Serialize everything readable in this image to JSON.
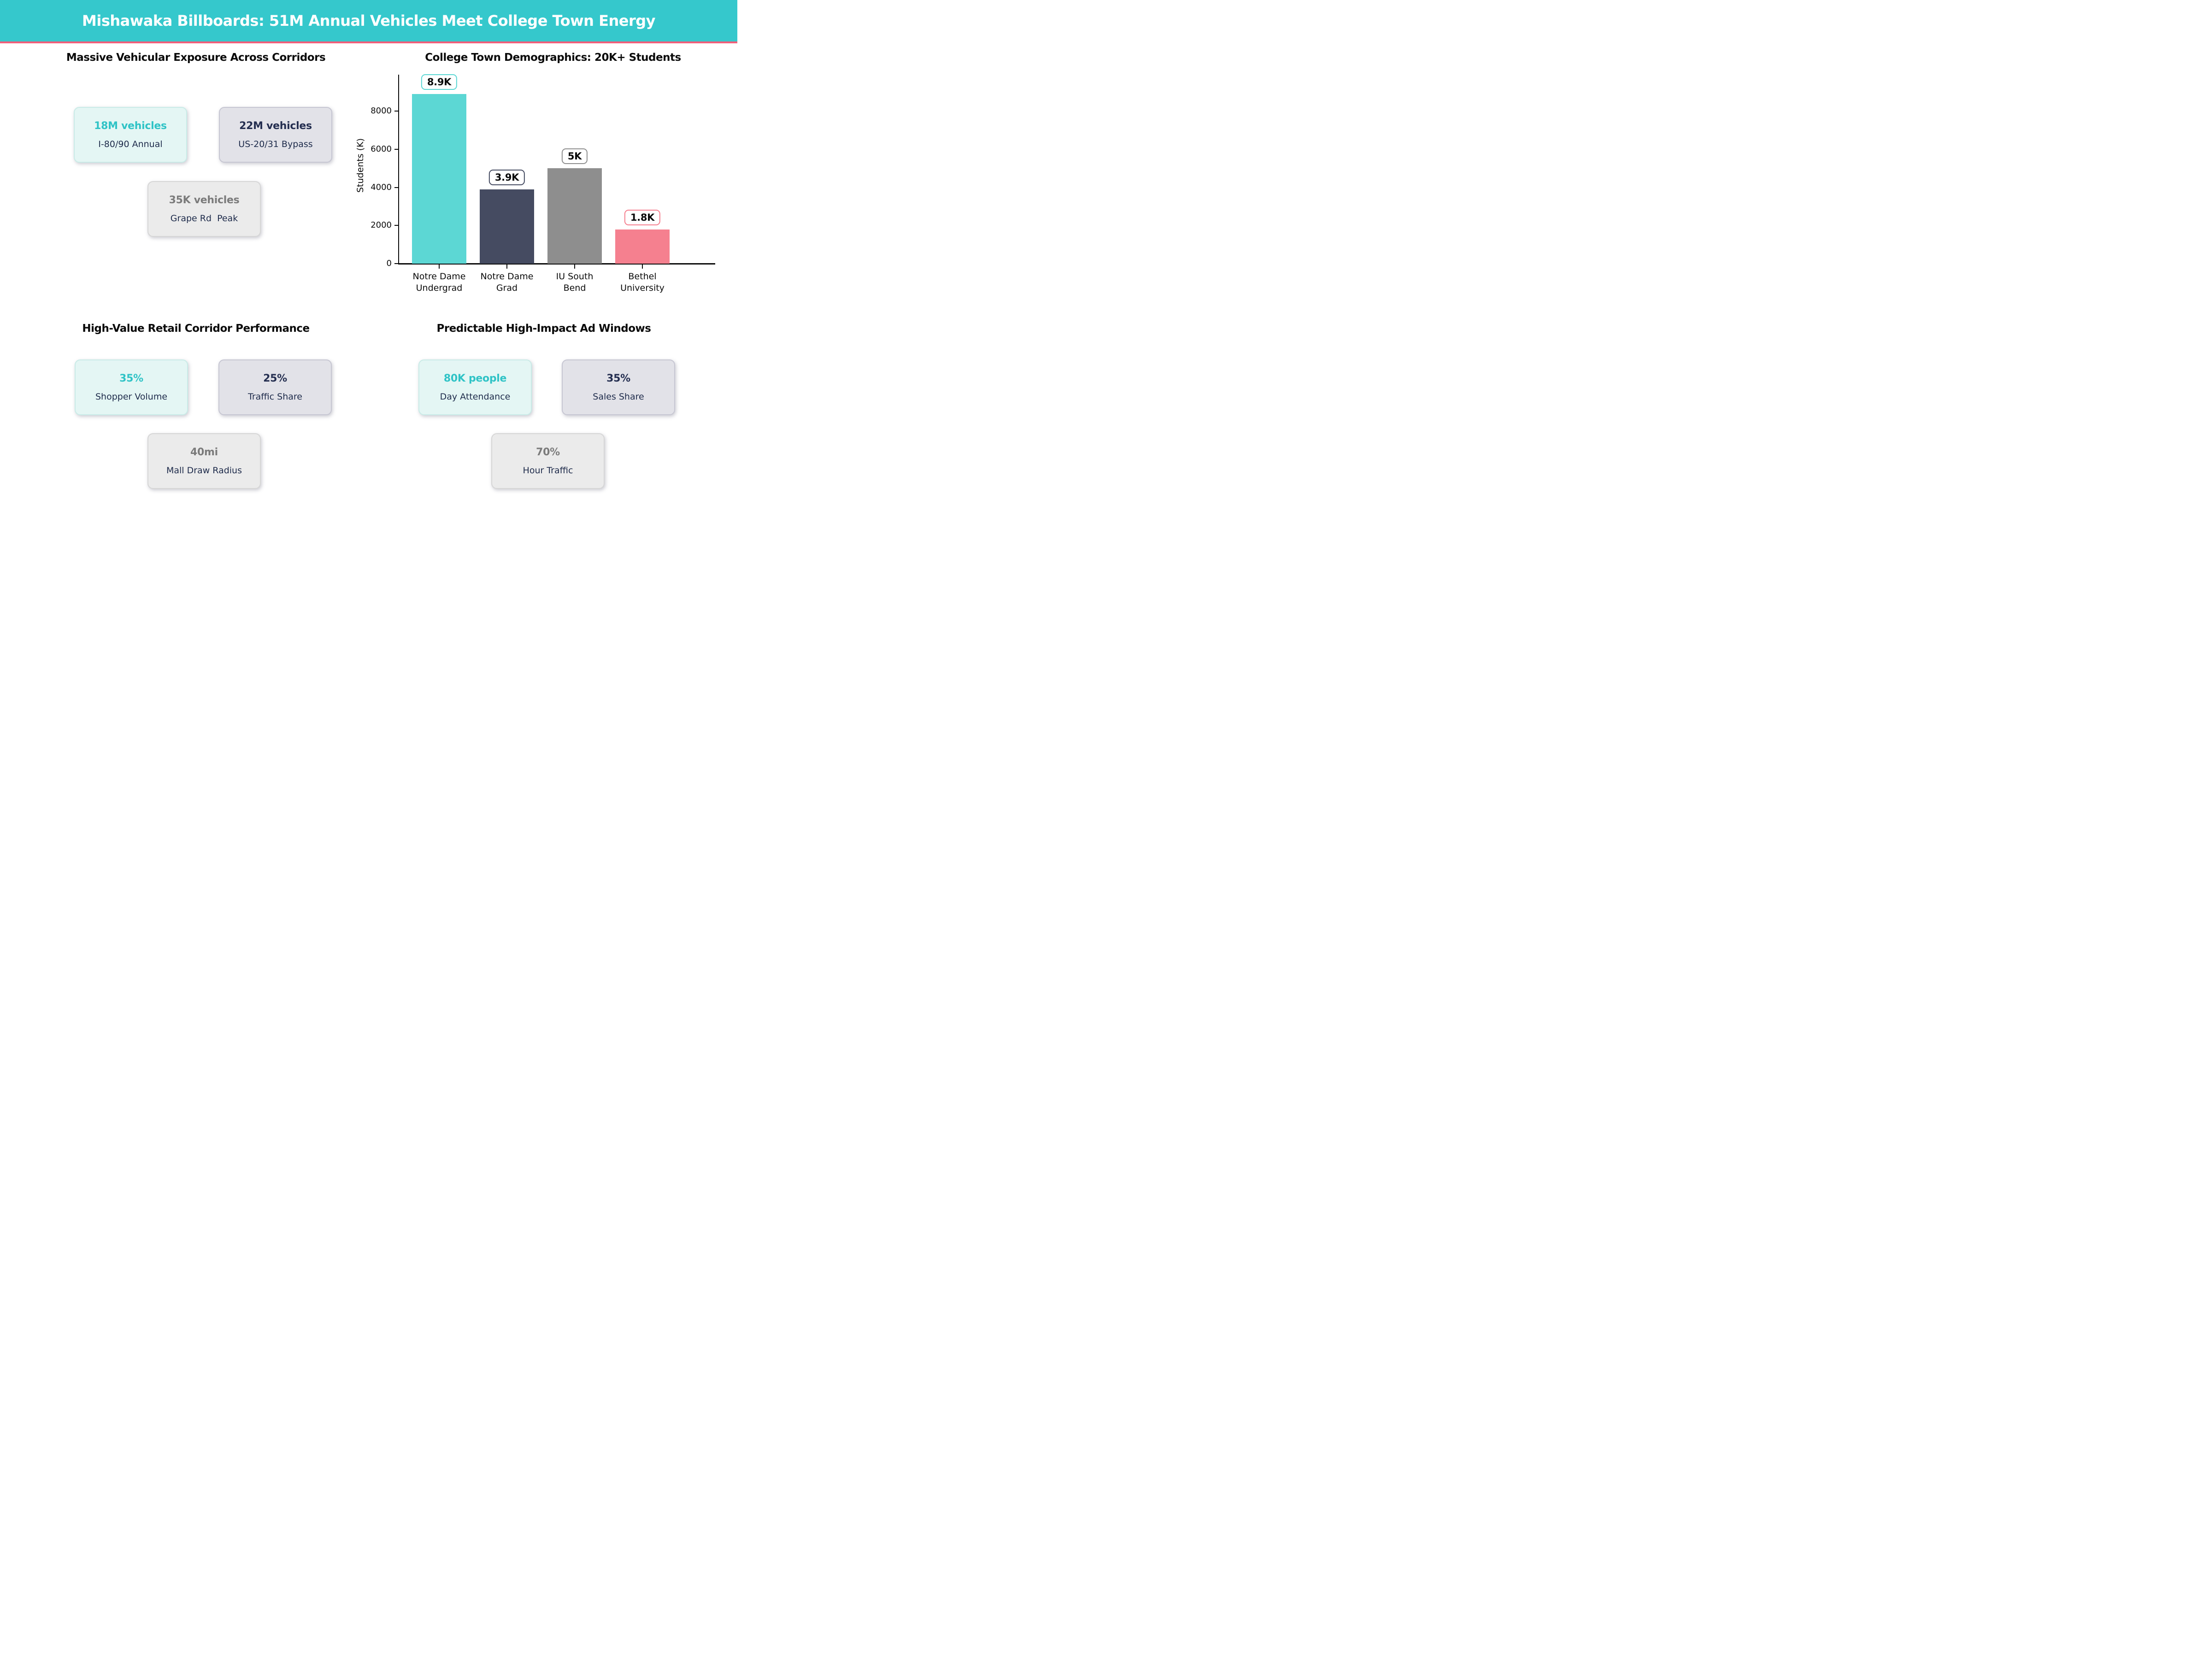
{
  "banner": {
    "title": "Mishawaka Billboards: 51M Annual Vehicles Meet College Town Energy",
    "bg_color": "#35c8cc",
    "accent_color": "#f05f7a"
  },
  "sections": {
    "vehicular": {
      "heading": "Massive Vehicular Exposure Across Corridors",
      "cards": [
        {
          "value": "18M vehicles",
          "label": "I-80/90 Annual"
        },
        {
          "value": "22M vehicles",
          "label": "US-20/31 Bypass"
        },
        {
          "value": "35K vehicles",
          "label": "Grape Rd  Peak"
        }
      ]
    },
    "retail": {
      "heading": "High-Value Retail Corridor Performance",
      "cards": [
        {
          "value": "35%",
          "label": "Shopper Volume"
        },
        {
          "value": "25%",
          "label": "Traffic Share"
        },
        {
          "value": "40mi",
          "label": "Mall Draw Radius"
        }
      ]
    },
    "ad_windows": {
      "heading": "Predictable High-Impact Ad Windows",
      "cards": [
        {
          "value": "80K people",
          "label": "Day Attendance"
        },
        {
          "value": "35%",
          "label": "Sales Share"
        },
        {
          "value": "70%",
          "label": "Hour Traffic"
        }
      ]
    }
  },
  "chart_data": {
    "type": "bar",
    "title": "College Town Demographics: 20K+ Students",
    "categories": [
      "Notre Dame\nUndergrad",
      "Notre Dame\nGrad",
      "IU South\nBend",
      "Bethel\nUniversity"
    ],
    "values": [
      8900,
      3900,
      5000,
      1800
    ],
    "bar_labels": [
      "8.9K",
      "3.9K",
      "5K",
      "1.8K"
    ],
    "bar_colors": [
      "#5cd7d4",
      "#454b61",
      "#8e8e8e",
      "#f5808f"
    ],
    "xlabel": "",
    "ylabel": "Students (K)",
    "yticks": [
      0,
      2000,
      4000,
      6000,
      8000
    ],
    "ylim": [
      0,
      9900
    ],
    "grid": false,
    "legend_position": "none"
  }
}
